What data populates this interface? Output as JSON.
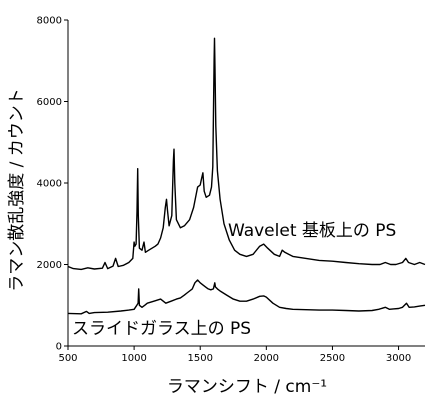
{
  "chart_data": {
    "type": "line",
    "title": "",
    "xlabel": "ラマンシフト / cm⁻¹",
    "ylabel": "ラマン散乱強度 / カウント",
    "xlim": [
      500,
      3200
    ],
    "ylim": [
      0,
      8000
    ],
    "x_ticks": [
      500,
      1000,
      1500,
      2000,
      2500,
      3000
    ],
    "y_ticks": [
      0,
      2000,
      4000,
      6000,
      8000
    ],
    "x_tick_labels": [
      "500",
      "1000",
      "1500",
      "2000",
      "2500",
      "3000"
    ],
    "y_tick_labels": [
      "0",
      "2000",
      "4000",
      "6000",
      "8000"
    ],
    "grid": false,
    "legend": "none",
    "series": [
      {
        "name": "Wavelet 基板上の PS",
        "color": "#000000",
        "points": [
          [
            500,
            1950
          ],
          [
            540,
            1900
          ],
          [
            600,
            1880
          ],
          [
            650,
            1920
          ],
          [
            700,
            1890
          ],
          [
            760,
            1910
          ],
          [
            780,
            2050
          ],
          [
            800,
            1900
          ],
          [
            840,
            1960
          ],
          [
            860,
            2150
          ],
          [
            880,
            1950
          ],
          [
            920,
            1980
          ],
          [
            960,
            2050
          ],
          [
            990,
            2150
          ],
          [
            1000,
            2550
          ],
          [
            1005,
            2450
          ],
          [
            1015,
            2500
          ],
          [
            1022,
            3300
          ],
          [
            1027,
            4350
          ],
          [
            1032,
            3200
          ],
          [
            1040,
            2400
          ],
          [
            1060,
            2350
          ],
          [
            1075,
            2550
          ],
          [
            1085,
            2300
          ],
          [
            1110,
            2350
          ],
          [
            1160,
            2450
          ],
          [
            1180,
            2500
          ],
          [
            1200,
            2650
          ],
          [
            1220,
            2900
          ],
          [
            1236,
            3400
          ],
          [
            1245,
            3600
          ],
          [
            1252,
            3350
          ],
          [
            1265,
            2950
          ],
          [
            1285,
            3200
          ],
          [
            1297,
            4550
          ],
          [
            1302,
            4830
          ],
          [
            1308,
            4000
          ],
          [
            1320,
            3100
          ],
          [
            1350,
            2900
          ],
          [
            1380,
            2950
          ],
          [
            1420,
            3100
          ],
          [
            1450,
            3400
          ],
          [
            1480,
            3900
          ],
          [
            1500,
            3950
          ],
          [
            1510,
            4100
          ],
          [
            1520,
            4250
          ],
          [
            1530,
            3800
          ],
          [
            1545,
            3650
          ],
          [
            1570,
            3700
          ],
          [
            1585,
            3900
          ],
          [
            1595,
            4400
          ],
          [
            1600,
            5600
          ],
          [
            1605,
            7000
          ],
          [
            1608,
            7550
          ],
          [
            1612,
            6800
          ],
          [
            1618,
            5400
          ],
          [
            1630,
            4300
          ],
          [
            1650,
            3600
          ],
          [
            1680,
            3000
          ],
          [
            1720,
            2600
          ],
          [
            1760,
            2350
          ],
          [
            1800,
            2250
          ],
          [
            1850,
            2200
          ],
          [
            1900,
            2250
          ],
          [
            1950,
            2450
          ],
          [
            1980,
            2500
          ],
          [
            2010,
            2400
          ],
          [
            2060,
            2250
          ],
          [
            2100,
            2200
          ],
          [
            2120,
            2350
          ],
          [
            2140,
            2300
          ],
          [
            2200,
            2200
          ],
          [
            2300,
            2150
          ],
          [
            2400,
            2100
          ],
          [
            2500,
            2080
          ],
          [
            2600,
            2050
          ],
          [
            2700,
            2020
          ],
          [
            2800,
            2000
          ],
          [
            2860,
            2000
          ],
          [
            2900,
            2050
          ],
          [
            2940,
            2000
          ],
          [
            2980,
            2000
          ],
          [
            3030,
            2050
          ],
          [
            3055,
            2150
          ],
          [
            3075,
            2050
          ],
          [
            3120,
            2000
          ],
          [
            3160,
            2050
          ],
          [
            3200,
            2000
          ]
        ]
      },
      {
        "name": "スライドガラス上の PS",
        "color": "#000000",
        "points": [
          [
            500,
            800
          ],
          [
            600,
            790
          ],
          [
            640,
            850
          ],
          [
            660,
            800
          ],
          [
            700,
            820
          ],
          [
            800,
            830
          ],
          [
            900,
            860
          ],
          [
            960,
            880
          ],
          [
            1000,
            900
          ],
          [
            1020,
            1000
          ],
          [
            1030,
            1050
          ],
          [
            1035,
            1400
          ],
          [
            1040,
            1000
          ],
          [
            1060,
            950
          ],
          [
            1080,
            1000
          ],
          [
            1100,
            1050
          ],
          [
            1150,
            1100
          ],
          [
            1200,
            1150
          ],
          [
            1240,
            1050
          ],
          [
            1280,
            1100
          ],
          [
            1320,
            1150
          ],
          [
            1350,
            1180
          ],
          [
            1380,
            1250
          ],
          [
            1400,
            1300
          ],
          [
            1420,
            1350
          ],
          [
            1440,
            1400
          ],
          [
            1460,
            1550
          ],
          [
            1480,
            1620
          ],
          [
            1500,
            1550
          ],
          [
            1520,
            1500
          ],
          [
            1540,
            1450
          ],
          [
            1560,
            1400
          ],
          [
            1580,
            1380
          ],
          [
            1600,
            1400
          ],
          [
            1610,
            1550
          ],
          [
            1615,
            1450
          ],
          [
            1630,
            1400
          ],
          [
            1650,
            1350
          ],
          [
            1700,
            1250
          ],
          [
            1750,
            1150
          ],
          [
            1800,
            1100
          ],
          [
            1850,
            1100
          ],
          [
            1900,
            1150
          ],
          [
            1950,
            1220
          ],
          [
            1980,
            1230
          ],
          [
            2000,
            1200
          ],
          [
            2050,
            1050
          ],
          [
            2100,
            950
          ],
          [
            2150,
            920
          ],
          [
            2200,
            900
          ],
          [
            2300,
            890
          ],
          [
            2400,
            880
          ],
          [
            2500,
            880
          ],
          [
            2600,
            870
          ],
          [
            2700,
            860
          ],
          [
            2800,
            870
          ],
          [
            2850,
            900
          ],
          [
            2900,
            950
          ],
          [
            2930,
            900
          ],
          [
            2960,
            910
          ],
          [
            3000,
            920
          ],
          [
            3030,
            950
          ],
          [
            3060,
            1050
          ],
          [
            3080,
            950
          ],
          [
            3120,
            960
          ],
          [
            3160,
            980
          ],
          [
            3200,
            1000
          ]
        ]
      }
    ],
    "annotations": [
      {
        "text": "Wavelet 基板上の PS",
        "x": 1710,
        "y": 2700
      },
      {
        "text": "スライドガラス上の PS",
        "x": 530,
        "y": 300
      }
    ]
  }
}
